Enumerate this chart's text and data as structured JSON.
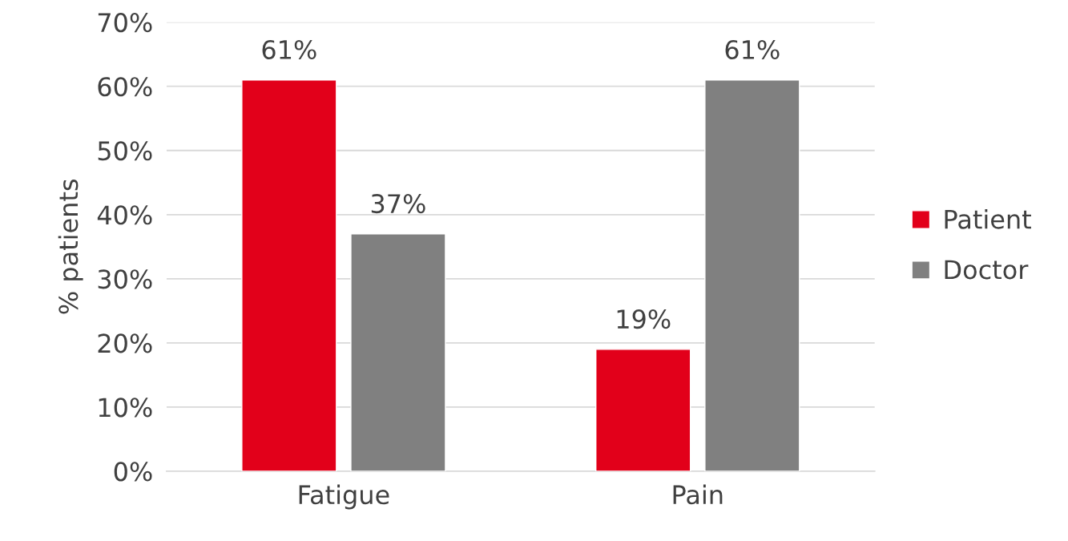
{
  "chart_data": {
    "type": "bar",
    "ylabel": "% patients",
    "categories": [
      "Fatigue",
      "Pain"
    ],
    "series": [
      {
        "name": "Patient",
        "color": "#e2001a",
        "values": [
          61,
          19
        ],
        "value_labels": [
          "61%",
          "19%"
        ]
      },
      {
        "name": "Doctor",
        "color": "#808080",
        "values": [
          37,
          61
        ],
        "value_labels": [
          "37%",
          "61%"
        ]
      }
    ],
    "ylim": [
      0,
      70
    ],
    "yticks": [
      {
        "value": 0,
        "label": "0%"
      },
      {
        "value": 10,
        "label": "10%"
      },
      {
        "value": 20,
        "label": "20%"
      },
      {
        "value": 30,
        "label": "30%"
      },
      {
        "value": 40,
        "label": "40%"
      },
      {
        "value": 50,
        "label": "50%"
      },
      {
        "value": 60,
        "label": "60%"
      },
      {
        "value": 70,
        "label": "70%"
      }
    ],
    "grid": "y",
    "legend": "right"
  }
}
